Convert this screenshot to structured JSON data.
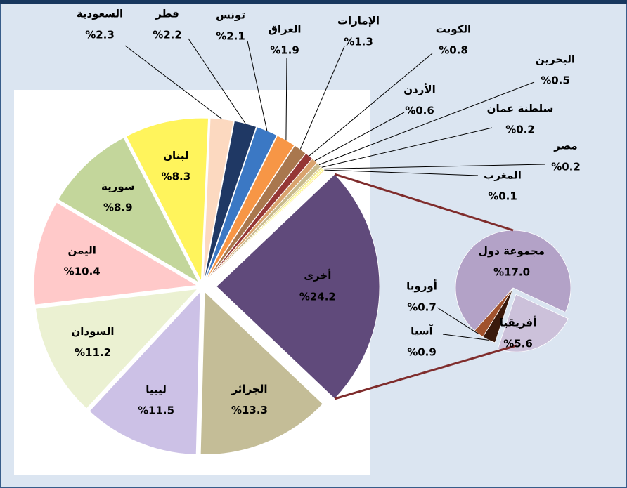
{
  "chart_data": {
    "type": "pie-of-pie",
    "categories": [
      "الجزائر",
      "ليبيا",
      "السودان",
      "اليمن",
      "سورية",
      "لبنان",
      "السعودية",
      "قطر",
      "تونس",
      "العراق",
      "الإمارات",
      "الكويت",
      "الأردن",
      "البحرين",
      "سلطنة عمان",
      "مصر",
      "المغرب",
      "أخرى"
    ],
    "values": [
      13.3,
      11.5,
      11.2,
      10.4,
      8.9,
      8.3,
      2.3,
      2.2,
      2.1,
      1.9,
      1.3,
      0.8,
      0.6,
      0.5,
      0.2,
      0.2,
      0.1,
      24.2
    ],
    "value_labels": [
      "%13.3",
      "%11.5",
      "%11.2",
      "%10.4",
      "%8.9",
      "%8.3",
      "%2.3",
      "%2.2",
      "%2.1",
      "%1.9",
      "%1.3",
      "%0.8",
      "%0.6",
      "%0.5",
      "%0.2",
      "%0.2",
      "%0.1",
      "%24.2"
    ],
    "colors": [
      "#c4bd97",
      "#ccc1e6",
      "#ebf1d2",
      "#ffc9c9",
      "#c3d69b",
      "#fff45c",
      "#fcd9c0",
      "#1f3864",
      "#3b78c4",
      "#f79646",
      "#a9774e",
      "#953735",
      "#d9a36e",
      "#c9bb8e",
      "#ebde9a",
      "#ffff99",
      "#ffd966",
      "#604a7b"
    ],
    "secondary": {
      "categories": [
        "أفريقيا",
        "آسيا",
        "أوروبا",
        "مجموعة دول"
      ],
      "values": [
        5.6,
        0.9,
        0.7,
        17.0
      ],
      "value_labels": [
        "%5.6",
        "%0.9",
        "%0.7",
        "%17.0"
      ],
      "colors": [
        "#ccc1da",
        "#3a1a0c",
        "#a0522d",
        "#b3a2c7"
      ]
    }
  }
}
